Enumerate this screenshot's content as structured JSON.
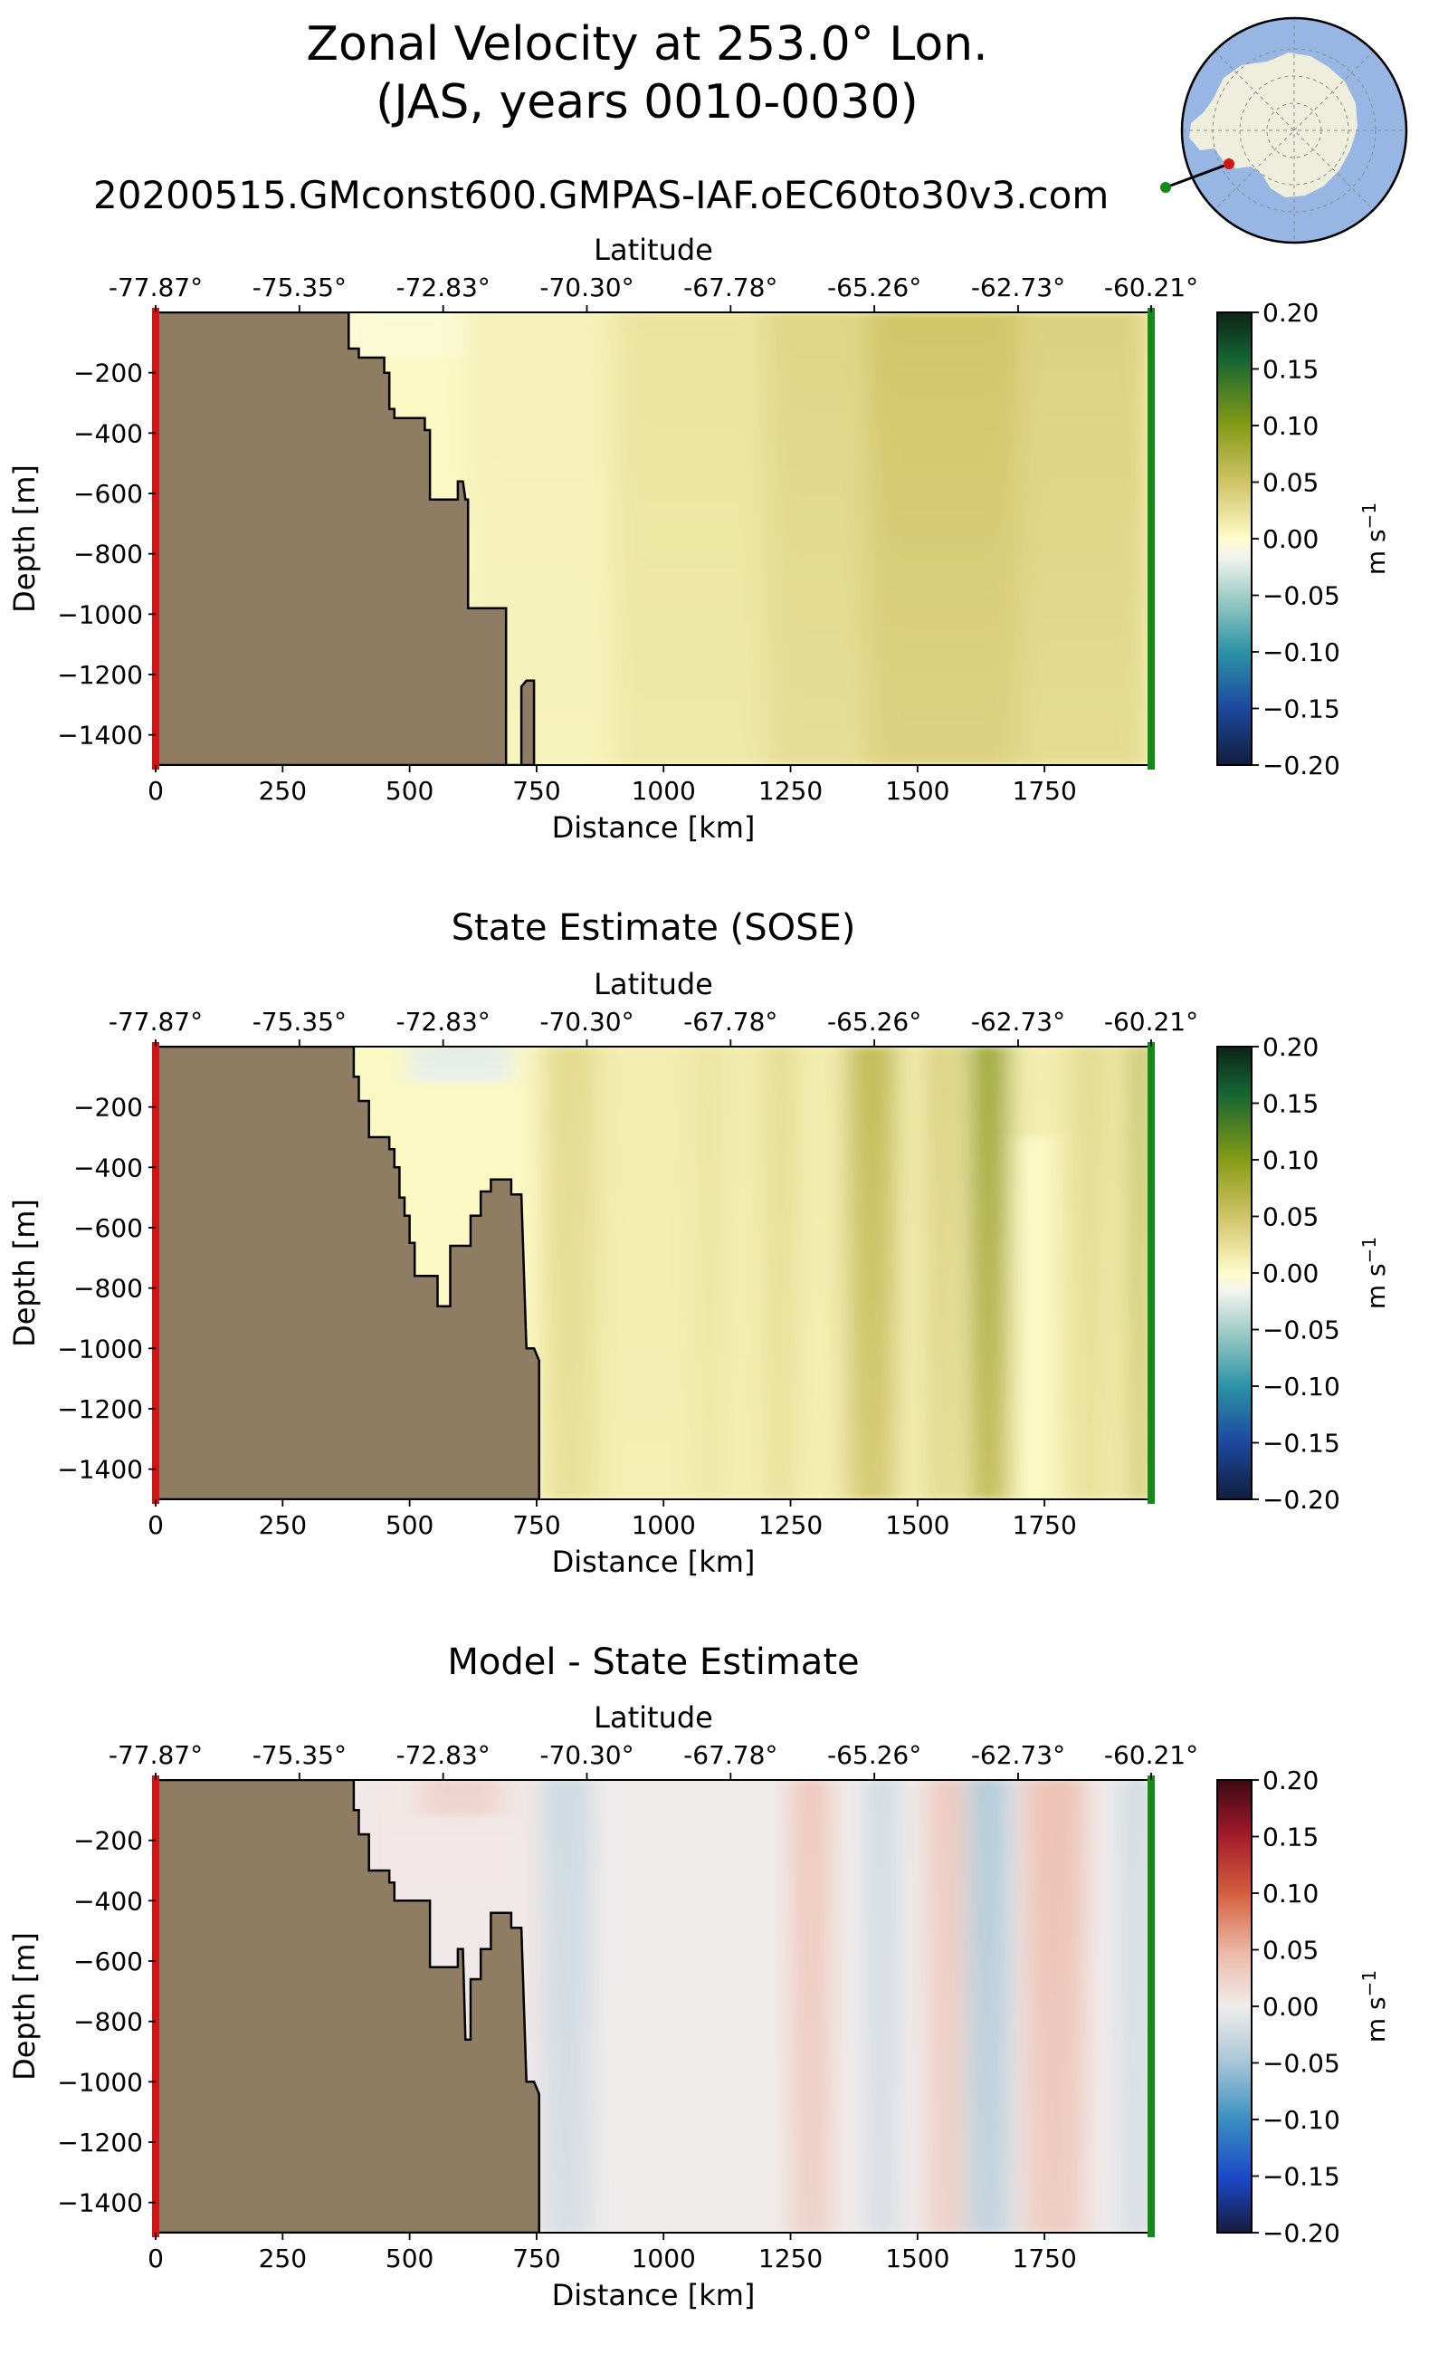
{
  "figure": {
    "title_line1": "Zonal Velocity at 253.0° Lon.",
    "title_line2": "(JAS, years 0010-0030)",
    "run_name": "20200515.GMconst600.GMPAS-IAF.oEC60to30v3.com"
  },
  "colors": {
    "land": "#8e7d62",
    "start_marker": "#d21414",
    "end_marker": "#158a1a",
    "section_line": "#000000",
    "ocean_map": "#98b6e3",
    "continent": "#efeedd"
  },
  "inset_map": {
    "projection": "south polar stereographic",
    "section_start": "red-dot",
    "section_end": "green-dot"
  },
  "chart_data": [
    {
      "type": "heatmap",
      "title": "",
      "xlabel": "Distance [km]",
      "ylabel": "Depth [m]",
      "top_axis_label": "Latitude",
      "xlim": [
        0,
        1960
      ],
      "ylim": [
        -1500,
        0
      ],
      "xticks": [
        0,
        250,
        500,
        750,
        1000,
        1250,
        1500,
        1750
      ],
      "xtick_labels": [
        "0",
        "250",
        "500",
        "750",
        "1000",
        "1250",
        "1500",
        "1750"
      ],
      "yticks": [
        -200,
        -400,
        -600,
        -800,
        -1000,
        -1200,
        -1400
      ],
      "ytick_labels": [
        "−200",
        "−400",
        "−600",
        "−800",
        "−1000",
        "−1200",
        "−1400"
      ],
      "top_ticks": [
        0,
        283,
        566,
        849,
        1132,
        1415,
        1698,
        1960
      ],
      "top_tick_labels": [
        "-77.87°",
        "-75.35°",
        "-72.83°",
        "-70.30°",
        "-67.78°",
        "-65.26°",
        "-62.73°",
        "-60.21°"
      ],
      "colorbar": {
        "cmap": "delta-style green-yellow-white-blue",
        "range": [
          -0.2,
          0.2
        ],
        "ticks": [
          "0.20",
          "0.15",
          "0.10",
          "0.05",
          "0.00",
          "−0.05",
          "−0.10",
          "−0.15",
          "−0.20"
        ],
        "label": "m s",
        "label_sup": "−1"
      },
      "bathymetry": [
        [
          0,
          -1500
        ],
        [
          0,
          0
        ],
        [
          380,
          0
        ],
        [
          380,
          -120
        ],
        [
          400,
          -120
        ],
        [
          400,
          -150
        ],
        [
          450,
          -150
        ],
        [
          450,
          -200
        ],
        [
          460,
          -200
        ],
        [
          460,
          -320
        ],
        [
          470,
          -320
        ],
        [
          470,
          -350
        ],
        [
          530,
          -350
        ],
        [
          530,
          -390
        ],
        [
          540,
          -390
        ],
        [
          540,
          -620
        ],
        [
          595,
          -620
        ],
        [
          595,
          -560
        ],
        [
          605,
          -560
        ],
        [
          610,
          -620
        ],
        [
          615,
          -620
        ],
        [
          615,
          -980
        ],
        [
          690,
          -980
        ],
        [
          690,
          -1500
        ],
        [
          720,
          -1500
        ],
        [
          720,
          -1240
        ],
        [
          730,
          -1220
        ],
        [
          745,
          -1220
        ],
        [
          745,
          -1500
        ]
      ],
      "field": [
        {
          "x0": 380,
          "x1": 610,
          "top": 0,
          "bottom": -1500,
          "value": 0.004,
          "decay": 400
        },
        {
          "x0": 380,
          "x1": 640,
          "top": 0,
          "bottom": -150,
          "value": -0.005,
          "decay": 150
        },
        {
          "x0": 610,
          "x1": 900,
          "top": 0,
          "bottom": -1500,
          "value": 0.01,
          "decay": 2000
        },
        {
          "x0": 900,
          "x1": 1200,
          "top": 0,
          "bottom": -1500,
          "value": 0.022,
          "decay": 2000
        },
        {
          "x0": 1200,
          "x1": 1400,
          "top": 0,
          "bottom": -1500,
          "value": 0.035,
          "decay": 1800
        },
        {
          "x0": 1400,
          "x1": 1700,
          "top": 0,
          "bottom": -1500,
          "value": 0.05,
          "decay": 1400
        },
        {
          "x0": 1700,
          "x1": 1960,
          "top": 0,
          "bottom": -1500,
          "value": 0.038,
          "decay": 1800
        }
      ]
    },
    {
      "type": "heatmap",
      "title": "State Estimate (SOSE)",
      "xlabel": "Distance [km]",
      "ylabel": "Depth [m]",
      "top_axis_label": "Latitude",
      "xlim": [
        0,
        1960
      ],
      "ylim": [
        -1500,
        0
      ],
      "xticks": [
        0,
        250,
        500,
        750,
        1000,
        1250,
        1500,
        1750
      ],
      "xtick_labels": [
        "0",
        "250",
        "500",
        "750",
        "1000",
        "1250",
        "1500",
        "1750"
      ],
      "yticks": [
        -200,
        -400,
        -600,
        -800,
        -1000,
        -1200,
        -1400
      ],
      "ytick_labels": [
        "−200",
        "−400",
        "−600",
        "−800",
        "−1000",
        "−1200",
        "−1400"
      ],
      "top_ticks": [
        0,
        283,
        566,
        849,
        1132,
        1415,
        1698,
        1960
      ],
      "top_tick_labels": [
        "-77.87°",
        "-75.35°",
        "-72.83°",
        "-70.30°",
        "-67.78°",
        "-65.26°",
        "-62.73°",
        "-60.21°"
      ],
      "colorbar": {
        "cmap": "delta-style green-yellow-white-blue",
        "range": [
          -0.2,
          0.2
        ],
        "ticks": [
          "0.20",
          "0.15",
          "0.10",
          "0.05",
          "0.00",
          "−0.05",
          "−0.10",
          "−0.15",
          "−0.20"
        ],
        "label": "m s",
        "label_sup": "−1"
      },
      "bathymetry": [
        [
          0,
          -1500
        ],
        [
          0,
          0
        ],
        [
          390,
          0
        ],
        [
          390,
          -100
        ],
        [
          400,
          -100
        ],
        [
          400,
          -180
        ],
        [
          420,
          -180
        ],
        [
          420,
          -300
        ],
        [
          460,
          -300
        ],
        [
          460,
          -340
        ],
        [
          470,
          -340
        ],
        [
          470,
          -400
        ],
        [
          480,
          -400
        ],
        [
          480,
          -500
        ],
        [
          490,
          -500
        ],
        [
          490,
          -560
        ],
        [
          500,
          -560
        ],
        [
          500,
          -650
        ],
        [
          510,
          -650
        ],
        [
          510,
          -760
        ],
        [
          555,
          -760
        ],
        [
          555,
          -860
        ],
        [
          580,
          -860
        ],
        [
          580,
          -660
        ],
        [
          620,
          -660
        ],
        [
          620,
          -560
        ],
        [
          640,
          -560
        ],
        [
          640,
          -480
        ],
        [
          660,
          -480
        ],
        [
          660,
          -440
        ],
        [
          700,
          -440
        ],
        [
          700,
          -490
        ],
        [
          720,
          -490
        ],
        [
          730,
          -1000
        ],
        [
          745,
          -1000
        ],
        [
          755,
          -1040
        ],
        [
          755,
          -1500
        ]
      ],
      "field": [
        {
          "x0": 390,
          "x1": 760,
          "top": 0,
          "bottom": -1500,
          "value": 0.004,
          "decay": 800
        },
        {
          "x0": 500,
          "x1": 700,
          "top": 0,
          "bottom": -120,
          "value": -0.022,
          "decay": 200
        },
        {
          "x0": 760,
          "x1": 1960,
          "top": 0,
          "bottom": -1500,
          "value": 0.014,
          "decay": 3000
        },
        {
          "x0": 760,
          "x1": 870,
          "top": 0,
          "bottom": -1500,
          "value": 0.03,
          "decay": 3000
        },
        {
          "x0": 1060,
          "x1": 1120,
          "top": 0,
          "bottom": -1500,
          "value": 0.022,
          "decay": 3000
        },
        {
          "x0": 1200,
          "x1": 1260,
          "top": 0,
          "bottom": -1500,
          "value": 0.03,
          "decay": 3000
        },
        {
          "x0": 1360,
          "x1": 1460,
          "top": 0,
          "bottom": -1500,
          "value": 0.06,
          "decay": 1400
        },
        {
          "x0": 1520,
          "x1": 1570,
          "top": 0,
          "bottom": -1500,
          "value": 0.045,
          "decay": 1800
        },
        {
          "x0": 1600,
          "x1": 1680,
          "top": 0,
          "bottom": -1500,
          "value": 0.085,
          "decay": 1000
        },
        {
          "x0": 1700,
          "x1": 1760,
          "top": -300,
          "bottom": -1500,
          "value": 0.0,
          "decay": 3000
        },
        {
          "x0": 1800,
          "x1": 1880,
          "top": 0,
          "bottom": -1500,
          "value": 0.03,
          "decay": 2000
        },
        {
          "x0": 1920,
          "x1": 1960,
          "top": 0,
          "bottom": -1500,
          "value": 0.07,
          "decay": 1500
        }
      ]
    },
    {
      "type": "heatmap",
      "title": "Model - State Estimate",
      "xlabel": "Distance [km]",
      "ylabel": "Depth [m]",
      "top_axis_label": "Latitude",
      "xlim": [
        0,
        1960
      ],
      "ylim": [
        -1500,
        0
      ],
      "xticks": [
        0,
        250,
        500,
        750,
        1000,
        1250,
        1500,
        1750
      ],
      "xtick_labels": [
        "0",
        "250",
        "500",
        "750",
        "1000",
        "1250",
        "1500",
        "1750"
      ],
      "yticks": [
        -200,
        -400,
        -600,
        -800,
        -1000,
        -1200,
        -1400
      ],
      "ytick_labels": [
        "−200",
        "−400",
        "−600",
        "−800",
        "−1000",
        "−1200",
        "−1400"
      ],
      "top_ticks": [
        0,
        283,
        566,
        849,
        1132,
        1415,
        1698,
        1960
      ],
      "top_tick_labels": [
        "-77.87°",
        "-75.35°",
        "-72.83°",
        "-70.30°",
        "-67.78°",
        "-65.26°",
        "-62.73°",
        "-60.21°"
      ],
      "colorbar": {
        "cmap": "balance red-white-blue",
        "range": [
          -0.2,
          0.2
        ],
        "ticks": [
          "0.20",
          "0.15",
          "0.10",
          "0.05",
          "0.00",
          "−0.05",
          "−0.10",
          "−0.15",
          "−0.20"
        ],
        "label": "m s",
        "label_sup": "−1"
      },
      "bathymetry": [
        [
          0,
          -1500
        ],
        [
          0,
          0
        ],
        [
          390,
          0
        ],
        [
          390,
          -100
        ],
        [
          400,
          -100
        ],
        [
          400,
          -180
        ],
        [
          420,
          -180
        ],
        [
          420,
          -300
        ],
        [
          460,
          -300
        ],
        [
          460,
          -340
        ],
        [
          470,
          -340
        ],
        [
          470,
          -400
        ],
        [
          540,
          -400
        ],
        [
          540,
          -620
        ],
        [
          595,
          -620
        ],
        [
          595,
          -560
        ],
        [
          605,
          -560
        ],
        [
          610,
          -860
        ],
        [
          620,
          -860
        ],
        [
          620,
          -660
        ],
        [
          640,
          -660
        ],
        [
          640,
          -560
        ],
        [
          660,
          -560
        ],
        [
          660,
          -440
        ],
        [
          700,
          -440
        ],
        [
          700,
          -490
        ],
        [
          720,
          -490
        ],
        [
          730,
          -1000
        ],
        [
          745,
          -1000
        ],
        [
          755,
          -1040
        ],
        [
          755,
          -1500
        ]
      ],
      "field": [
        {
          "x0": 390,
          "x1": 760,
          "top": 0,
          "bottom": -1500,
          "value": 0.004,
          "decay": 900
        },
        {
          "x0": 520,
          "x1": 680,
          "top": 0,
          "bottom": -120,
          "value": 0.025,
          "decay": 220
        },
        {
          "x0": 760,
          "x1": 860,
          "top": 0,
          "bottom": -1500,
          "value": -0.025,
          "decay": 1200
        },
        {
          "x0": 1250,
          "x1": 1330,
          "top": 0,
          "bottom": -1500,
          "value": 0.035,
          "decay": 1800
        },
        {
          "x0": 1400,
          "x1": 1460,
          "top": 0,
          "bottom": -1500,
          "value": -0.025,
          "decay": 1800
        },
        {
          "x0": 1520,
          "x1": 1590,
          "top": 0,
          "bottom": -1500,
          "value": 0.035,
          "decay": 1800
        },
        {
          "x0": 1600,
          "x1": 1680,
          "top": 0,
          "bottom": -1500,
          "value": -0.045,
          "decay": 1500
        },
        {
          "x0": 1710,
          "x1": 1830,
          "top": 0,
          "bottom": -1500,
          "value": 0.04,
          "decay": 1500
        },
        {
          "x0": 1900,
          "x1": 1960,
          "top": 0,
          "bottom": -1500,
          "value": -0.025,
          "decay": 1600
        }
      ]
    }
  ]
}
